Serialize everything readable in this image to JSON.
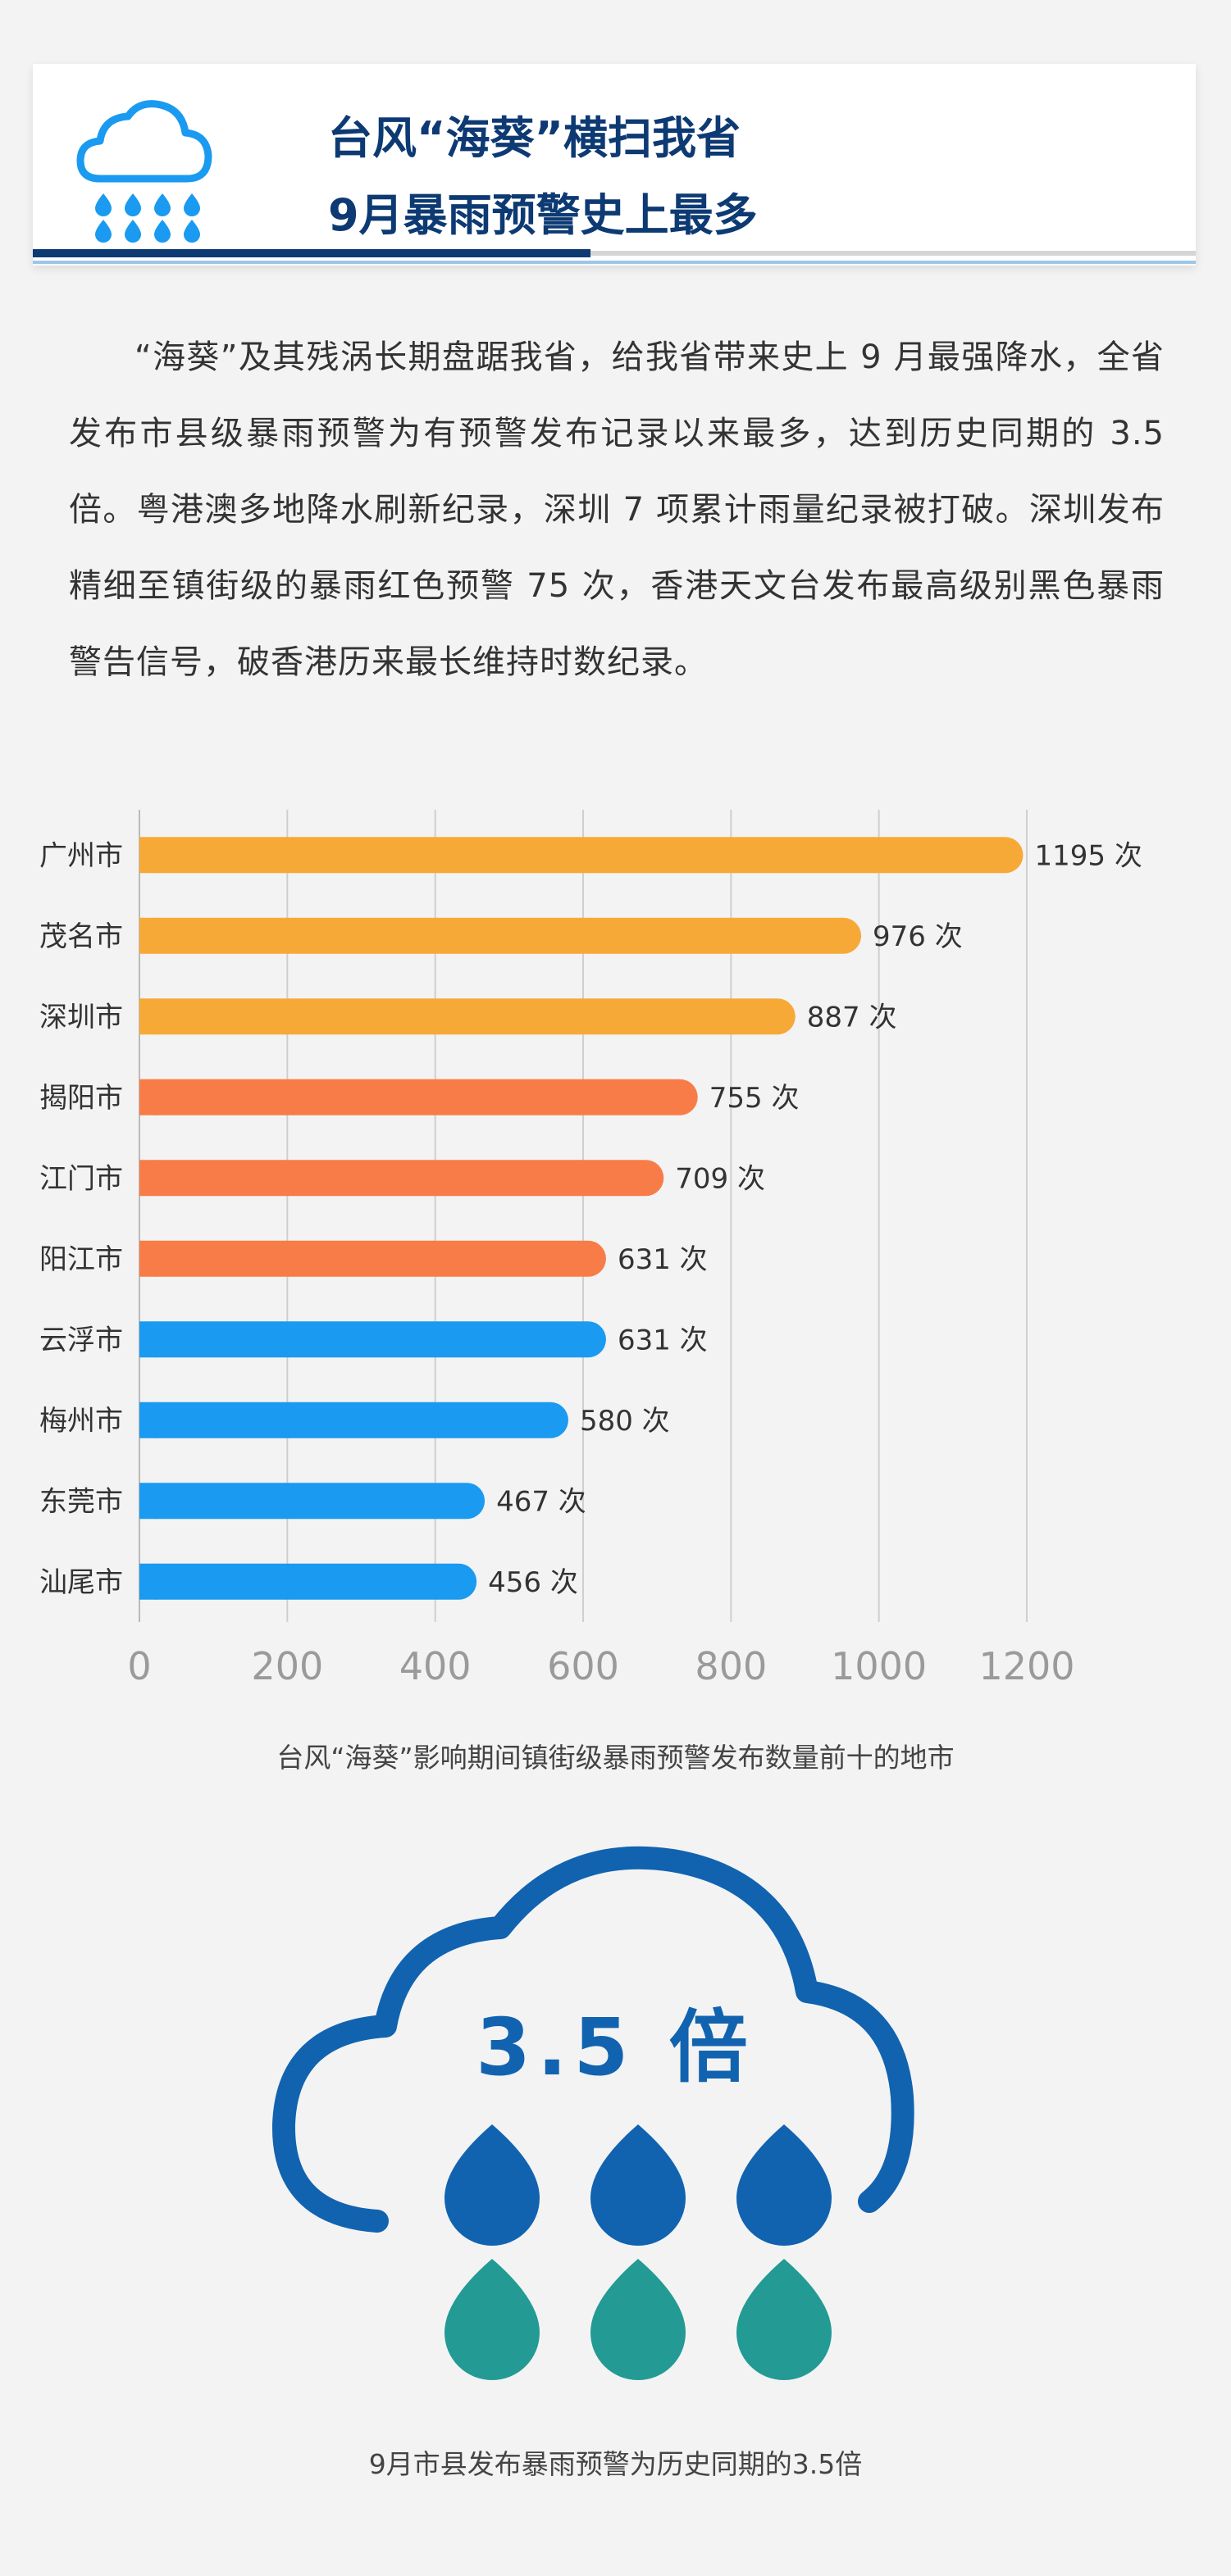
{
  "header": {
    "title_line1": "台风“海葵”横扫我省",
    "title_line2": "9月暴雨预警史上最多",
    "icon": "rain-cloud-icon"
  },
  "intro": {
    "paragraph": "“海葵”及其残涡长期盘踞我省，给我省带来史上 9 月最强降水，全省发布市县级暴雨预警为有预警发布记录以来最多，达到历史同期的 3.5 倍。粤港澳多地降水刷新纪录，深圳 7 项累计雨量纪录被打破。深圳发布精细至镇街级的暴雨红色预警 75 次，香港天文台发布最高级别黑色暴雨警告信号，破香港历来最长维持时数纪录。"
  },
  "chart_data": {
    "type": "bar",
    "orientation": "horizontal",
    "categories": [
      "广州市",
      "茂名市",
      "深圳市",
      "揭阳市",
      "江门市",
      "阳江市",
      "云浮市",
      "梅州市",
      "东莞市",
      "汕尾市"
    ],
    "values": [
      1195,
      976,
      887,
      755,
      709,
      631,
      631,
      580,
      467,
      456
    ],
    "value_suffix": " 次",
    "bar_colors": [
      "#f7a937",
      "#f7a937",
      "#f7a937",
      "#f87c47",
      "#f87c47",
      "#f87c47",
      "#1a9af0",
      "#1a9af0",
      "#1a9af0",
      "#1a9af0"
    ],
    "x_ticks": [
      0,
      200,
      400,
      600,
      800,
      1000,
      1200
    ],
    "xlim": [
      0,
      1200
    ],
    "grid": true,
    "legend": "none",
    "caption": "台风“海葵”影响期间镇街级暴雨预警发布数量前十的地市"
  },
  "cloud_graphic": {
    "factor_text": "3.5 倍",
    "icon": "cloud-raindrops-icon",
    "drop_colors": [
      "#1163b0",
      "#239a94"
    ],
    "caption": "9月市县发布暴雨预警为历史同期的3.5倍"
  }
}
